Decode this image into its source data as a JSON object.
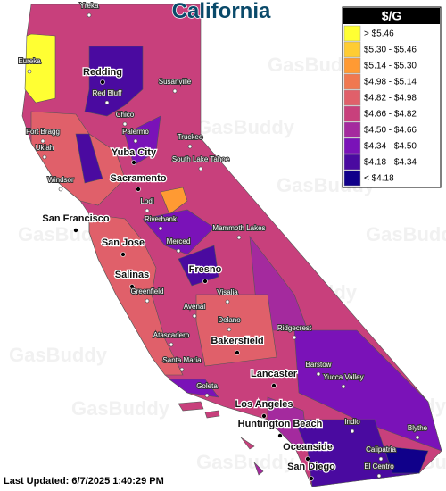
{
  "title": "California",
  "watermark": "GasBuddy",
  "legend": {
    "title": "$/G",
    "items": [
      {
        "label": "> $5.46",
        "color": "#ffff33"
      },
      {
        "label": "$5.30 - $5.46",
        "color": "#ffcc33"
      },
      {
        "label": "$5.14 - $5.30",
        "color": "#ff9a33"
      },
      {
        "label": "$4.98 - $5.14",
        "color": "#f07850"
      },
      {
        "label": "$4.82 - $4.98",
        "color": "#e0606a"
      },
      {
        "label": "$4.66 - $4.82",
        "color": "#c8407c"
      },
      {
        "label": "$4.50 - $4.66",
        "color": "#a42a9e"
      },
      {
        "label": "$4.34 - $4.50",
        "color": "#7a12b8"
      },
      {
        "label": "$4.18 - $4.34",
        "color": "#4a0aa0"
      },
      {
        "label": "< $4.18",
        "color": "#10008a"
      }
    ]
  },
  "cities": [
    {
      "name": "Yreka",
      "major": false
    },
    {
      "name": "Eureka",
      "major": false
    },
    {
      "name": "Redding",
      "major": true
    },
    {
      "name": "Susanville",
      "major": false
    },
    {
      "name": "Red Bluff",
      "major": false
    },
    {
      "name": "Chico",
      "major": false
    },
    {
      "name": "Palermo",
      "major": false
    },
    {
      "name": "Fort Bragg",
      "major": false
    },
    {
      "name": "Truckee",
      "major": false
    },
    {
      "name": "Ukiah",
      "major": false
    },
    {
      "name": "Yuba City",
      "major": true
    },
    {
      "name": "South Lake Tahoe",
      "major": false
    },
    {
      "name": "Windsor",
      "major": false
    },
    {
      "name": "Sacramento",
      "major": true
    },
    {
      "name": "Lodi",
      "major": false
    },
    {
      "name": "San Francisco",
      "major": true
    },
    {
      "name": "Riverbank",
      "major": false
    },
    {
      "name": "Mammoth Lakes",
      "major": false
    },
    {
      "name": "San Jose",
      "major": true
    },
    {
      "name": "Merced",
      "major": false
    },
    {
      "name": "Fresno",
      "major": true
    },
    {
      "name": "Salinas",
      "major": true
    },
    {
      "name": "Greenfield",
      "major": false
    },
    {
      "name": "Visalia",
      "major": false
    },
    {
      "name": "Avenal",
      "major": false
    },
    {
      "name": "Delano",
      "major": false
    },
    {
      "name": "Ridgecrest",
      "major": false
    },
    {
      "name": "Atascadero",
      "major": false
    },
    {
      "name": "Bakersfield",
      "major": true
    },
    {
      "name": "Barstow",
      "major": false
    },
    {
      "name": "Santa Maria",
      "major": false
    },
    {
      "name": "Lancaster",
      "major": true
    },
    {
      "name": "Goleta",
      "major": false
    },
    {
      "name": "Yucca Valley",
      "major": false
    },
    {
      "name": "Los Angeles",
      "major": true
    },
    {
      "name": "Indio",
      "major": false
    },
    {
      "name": "Blythe",
      "major": false
    },
    {
      "name": "Huntington Beach",
      "major": true
    },
    {
      "name": "Oceanside",
      "major": true
    },
    {
      "name": "Calipatria",
      "major": false
    },
    {
      "name": "San Diego",
      "major": true
    },
    {
      "name": "El Centro",
      "major": false
    }
  ],
  "footer": "Last Updated: 6/7/2025 1:40:29 PM"
}
